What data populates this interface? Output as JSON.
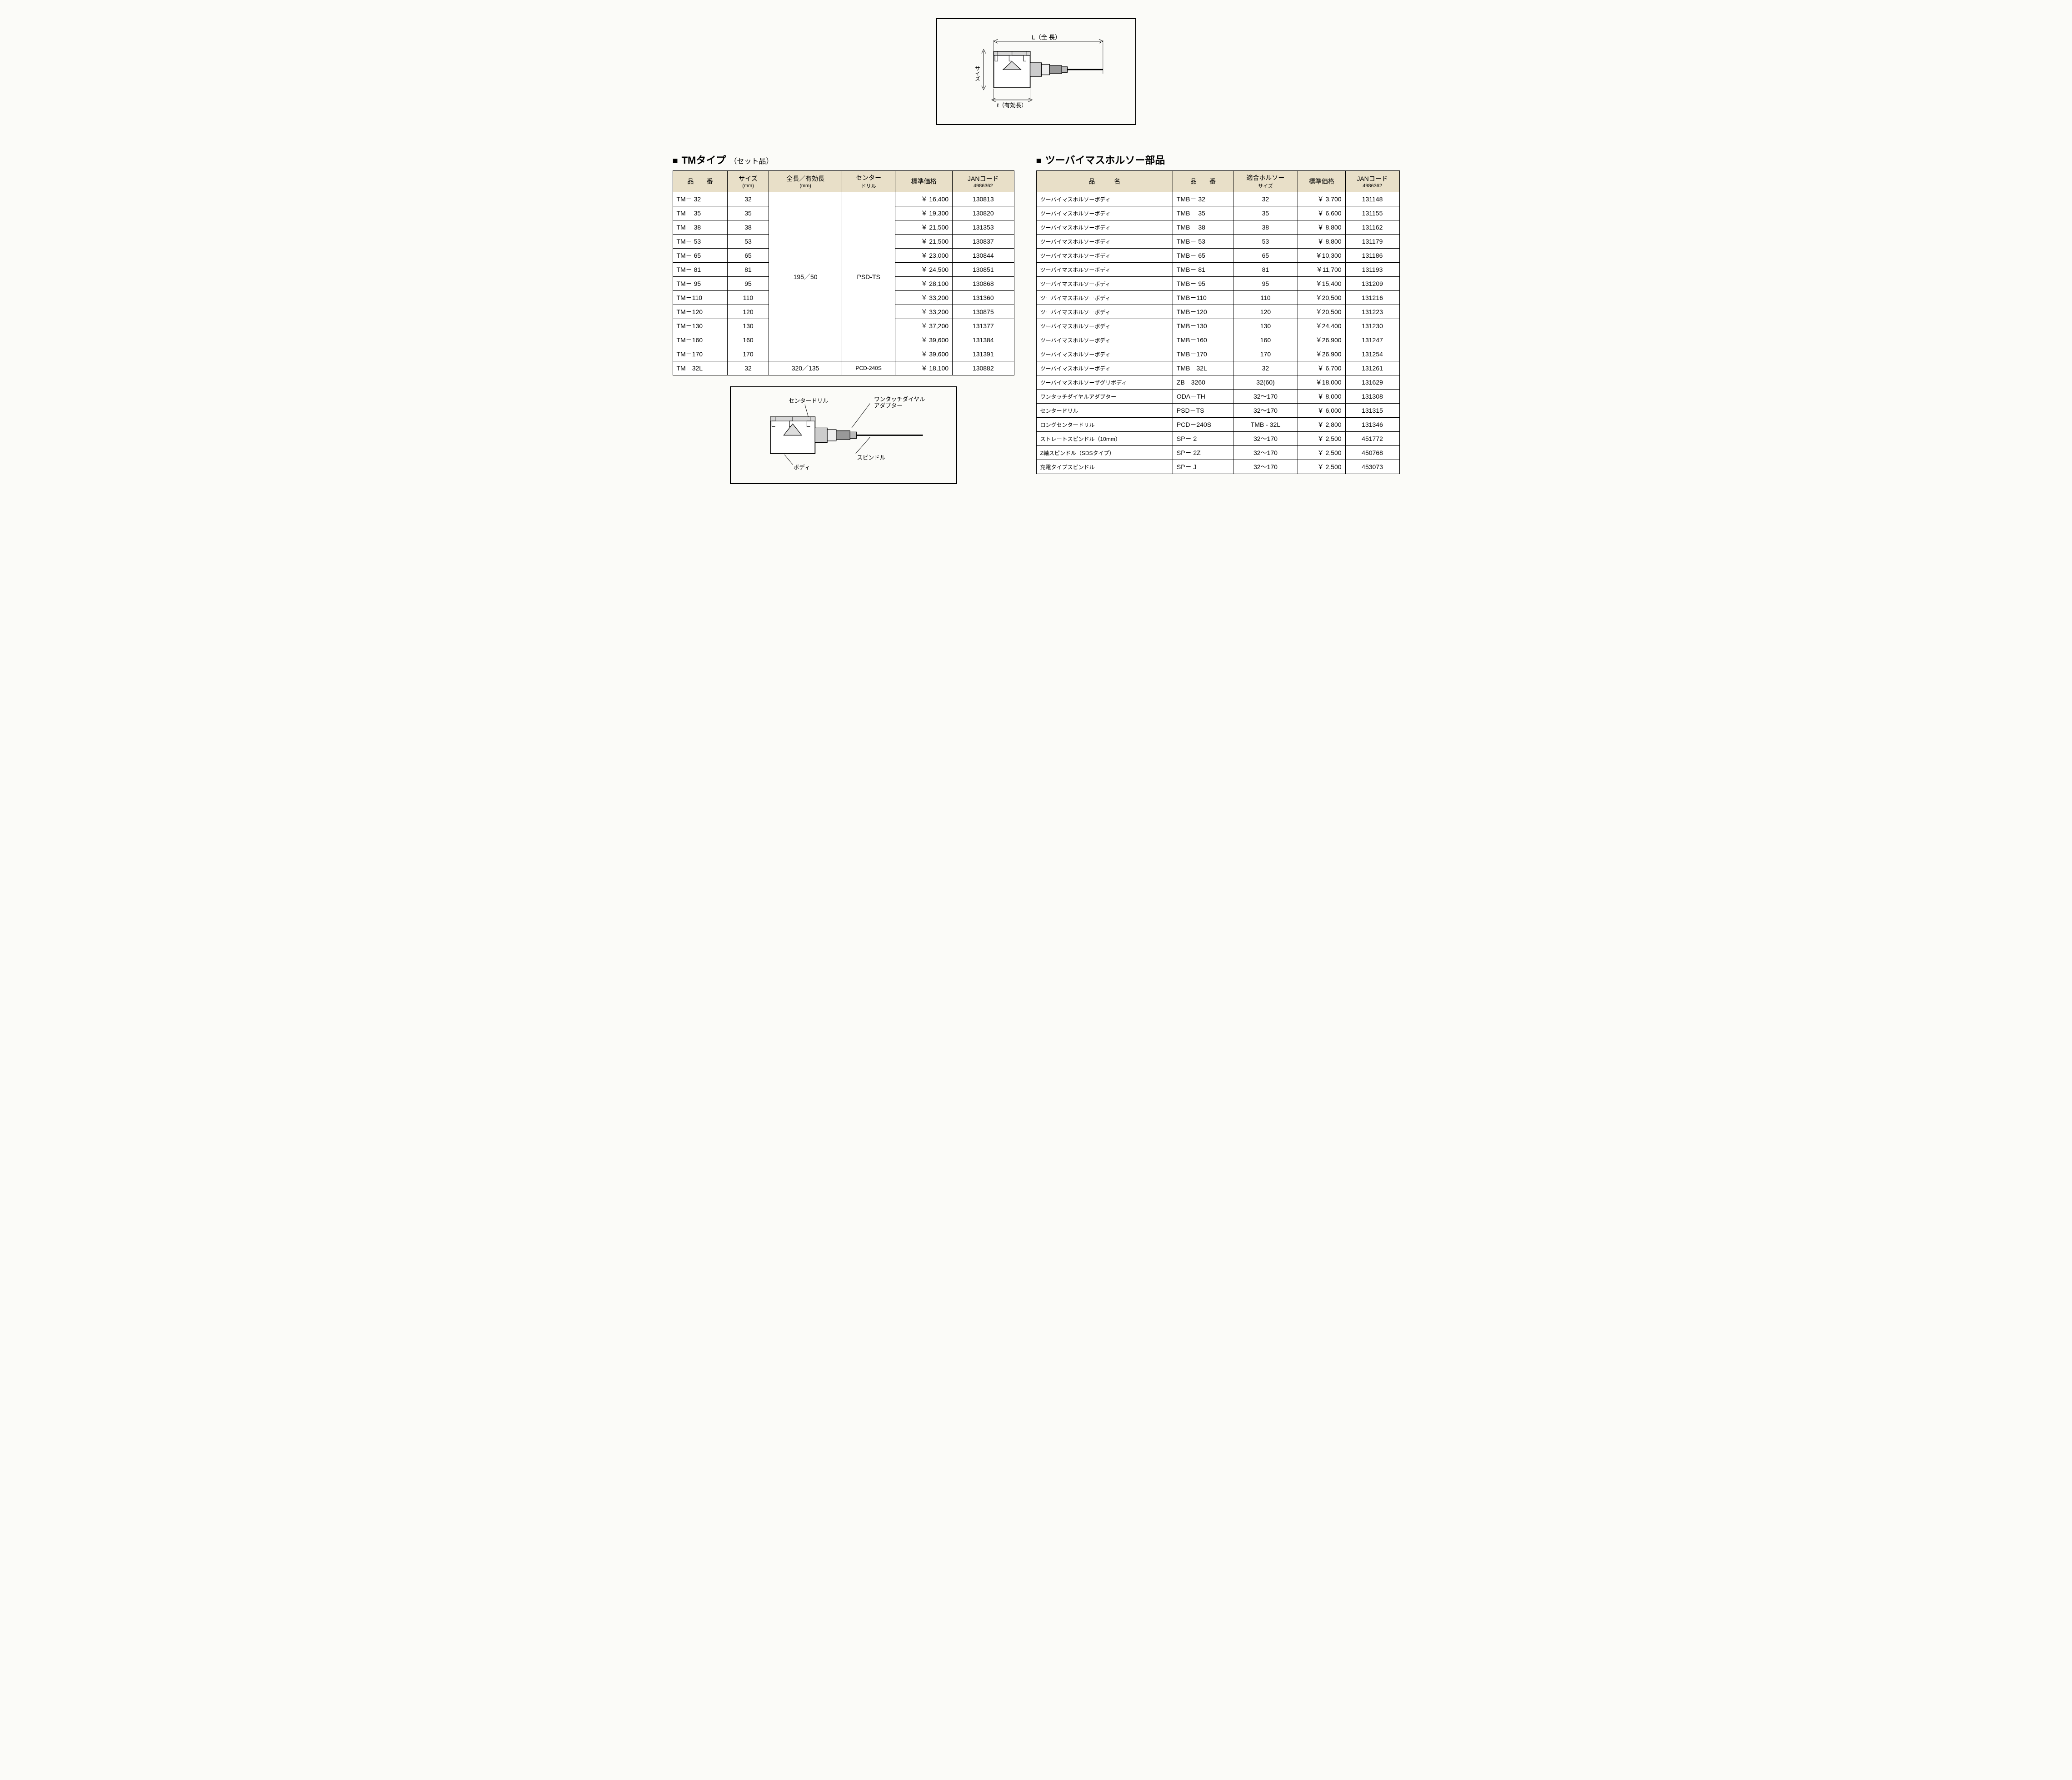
{
  "top_diagram": {
    "label_L": "L（全 長）",
    "label_size": "サイズ",
    "label_eff": "ℓ（有効長）",
    "stroke": "#000000",
    "body_fill": "#ffffff",
    "shade_fill": "#d0d0d0"
  },
  "left_section": {
    "title_main": "TMタイプ",
    "title_sub": "（セット品）",
    "columns": [
      {
        "main": "品　　番",
        "sub": ""
      },
      {
        "main": "サイズ",
        "sub": "(mm)"
      },
      {
        "main": "全長／有効長",
        "sub": "(mm)"
      },
      {
        "main": "センター",
        "sub": "ドリル"
      },
      {
        "main": "標準価格",
        "sub": ""
      },
      {
        "main": "JANコード",
        "sub": "4986362"
      }
    ],
    "shared_length": "195／50",
    "shared_drill": "PSD-TS",
    "rows": [
      {
        "pn": "TM－  32",
        "size": "32",
        "price": "￥ 16,400",
        "jan": "130813"
      },
      {
        "pn": "TM－  35",
        "size": "35",
        "price": "￥ 19,300",
        "jan": "130820"
      },
      {
        "pn": "TM－  38",
        "size": "38",
        "price": "￥ 21,500",
        "jan": "131353"
      },
      {
        "pn": "TM－  53",
        "size": "53",
        "price": "￥ 21,500",
        "jan": "130837"
      },
      {
        "pn": "TM－  65",
        "size": "65",
        "price": "￥ 23,000",
        "jan": "130844"
      },
      {
        "pn": "TM－  81",
        "size": "81",
        "price": "￥ 24,500",
        "jan": "130851"
      },
      {
        "pn": "TM－  95",
        "size": "95",
        "price": "￥ 28,100",
        "jan": "130868"
      },
      {
        "pn": "TM－110",
        "size": "110",
        "price": "￥ 33,200",
        "jan": "131360"
      },
      {
        "pn": "TM－120",
        "size": "120",
        "price": "￥ 33,200",
        "jan": "130875"
      },
      {
        "pn": "TM－130",
        "size": "130",
        "price": "￥ 37,200",
        "jan": "131377"
      },
      {
        "pn": "TM－160",
        "size": "160",
        "price": "￥ 39,600",
        "jan": "131384"
      },
      {
        "pn": "TM－170",
        "size": "170",
        "price": "￥ 39,600",
        "jan": "131391"
      }
    ],
    "last_row": {
      "pn": "TM－32L",
      "size": "32",
      "length": "320／135",
      "drill": "PCD-240S",
      "price": "￥ 18,100",
      "jan": "130882"
    }
  },
  "bottom_diagram": {
    "label_center_drill": "センタードリル",
    "label_adapter": "ワンタッチダイヤル\nアダプター",
    "label_spindle": "スピンドル",
    "label_body": "ボディ",
    "stroke": "#000000"
  },
  "right_section": {
    "title_main": "ツーバイマスホルソー部品",
    "columns": [
      {
        "main": "品　　　名",
        "sub": ""
      },
      {
        "main": "品　　番",
        "sub": ""
      },
      {
        "main": "適合ホルソー",
        "sub": "サイズ"
      },
      {
        "main": "標準価格",
        "sub": ""
      },
      {
        "main": "JANコード",
        "sub": "4986362"
      }
    ],
    "rows": [
      {
        "name": "ツーバイマスホルソーボディ",
        "pn": "TMB－  32",
        "size": "32",
        "price": "￥  3,700",
        "jan": "131148"
      },
      {
        "name": "ツーバイマスホルソーボディ",
        "pn": "TMB－  35",
        "size": "35",
        "price": "￥  6,600",
        "jan": "131155"
      },
      {
        "name": "ツーバイマスホルソーボディ",
        "pn": "TMB－  38",
        "size": "38",
        "price": "￥  8,800",
        "jan": "131162"
      },
      {
        "name": "ツーバイマスホルソーボディ",
        "pn": "TMB－  53",
        "size": "53",
        "price": "￥  8,800",
        "jan": "131179"
      },
      {
        "name": "ツーバイマスホルソーボディ",
        "pn": "TMB－  65",
        "size": "65",
        "price": "￥10,300",
        "jan": "131186"
      },
      {
        "name": "ツーバイマスホルソーボディ",
        "pn": "TMB－  81",
        "size": "81",
        "price": "￥11,700",
        "jan": "131193"
      },
      {
        "name": "ツーバイマスホルソーボディ",
        "pn": "TMB－  95",
        "size": "95",
        "price": "￥15,400",
        "jan": "131209"
      },
      {
        "name": "ツーバイマスホルソーボディ",
        "pn": "TMB－110",
        "size": "110",
        "price": "￥20,500",
        "jan": "131216"
      },
      {
        "name": "ツーバイマスホルソーボディ",
        "pn": "TMB－120",
        "size": "120",
        "price": "￥20,500",
        "jan": "131223"
      },
      {
        "name": "ツーバイマスホルソーボディ",
        "pn": "TMB－130",
        "size": "130",
        "price": "￥24,400",
        "jan": "131230"
      },
      {
        "name": "ツーバイマスホルソーボディ",
        "pn": "TMB－160",
        "size": "160",
        "price": "￥26,900",
        "jan": "131247"
      },
      {
        "name": "ツーバイマスホルソーボディ",
        "pn": "TMB－170",
        "size": "170",
        "price": "￥26,900",
        "jan": "131254"
      },
      {
        "name": "ツーバイマスホルソーボディ",
        "pn": "TMB－32L",
        "size": "32",
        "price": "￥  6,700",
        "jan": "131261"
      },
      {
        "name": "ツーバイマスホルソーザグリボディ",
        "pn": "ZB－3260",
        "size": "32(60)",
        "price": "￥18,000",
        "jan": "131629"
      },
      {
        "name": "ワンタッチダイヤルアダプター",
        "pn": "ODA－TH",
        "size": "32～170",
        "price": "￥  8,000",
        "jan": "131308"
      },
      {
        "name": "センタードリル",
        "pn": "PSD－TS",
        "size": "32～170",
        "price": "￥  6,000",
        "jan": "131315"
      },
      {
        "name": "ロングセンタードリル",
        "pn": "PCD－240S",
        "size": "TMB - 32L",
        "price": "￥  2,800",
        "jan": "131346"
      },
      {
        "name": "ストレートスピンドル（10mm）",
        "pn": "SP－  2",
        "size": "32～170",
        "price": "￥  2,500",
        "jan": "451772"
      },
      {
        "name": "Z軸スピンドル（SDSタイプ）",
        "pn": "SP－  2Z",
        "size": "32～170",
        "price": "￥  2,500",
        "jan": "450768"
      },
      {
        "name": "充電タイプスピンドル",
        "pn": "SP－  J",
        "size": "32～170",
        "price": "￥  2,500",
        "jan": "453073"
      }
    ]
  },
  "styling": {
    "header_bg": "#e8dfc8",
    "border_color": "#000000",
    "body_bg": "#fbfbf8"
  }
}
